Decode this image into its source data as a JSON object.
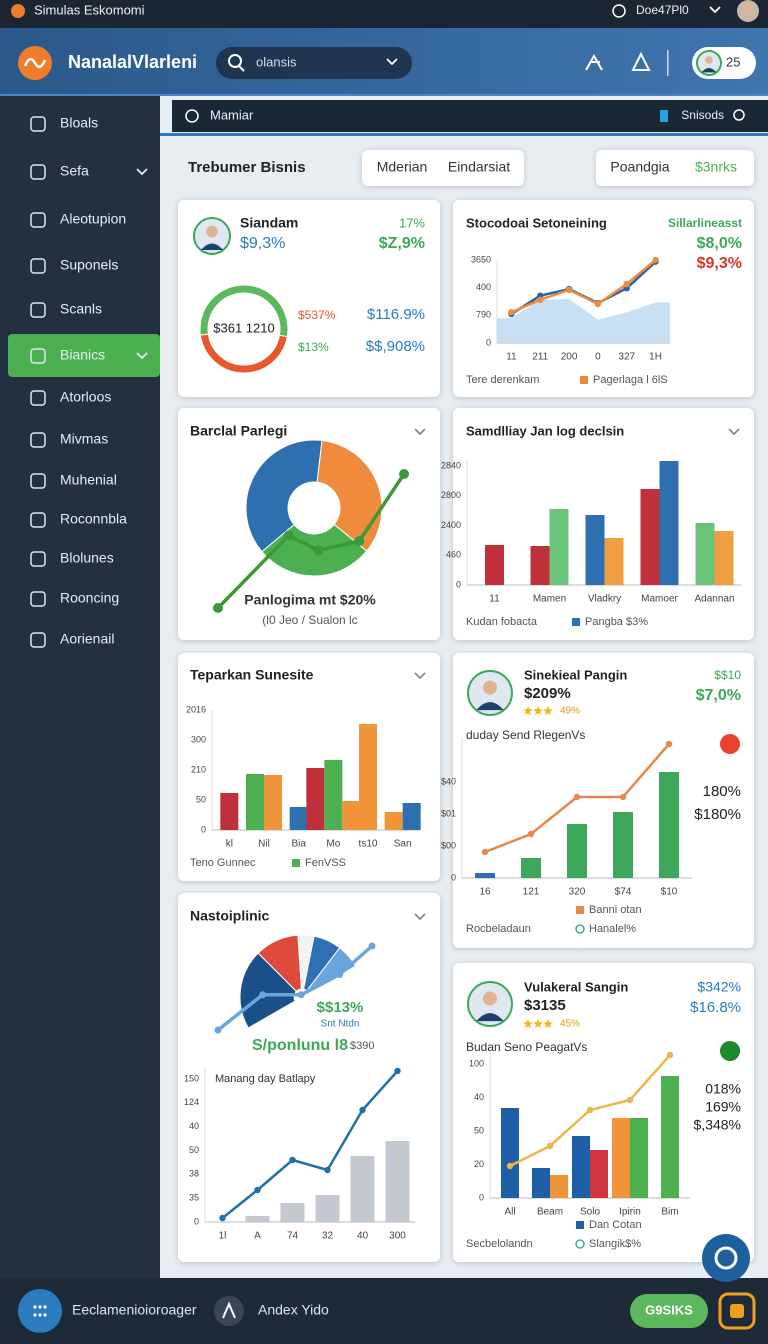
{
  "status_bar": {
    "app": "Simulas Eskomomi",
    "user": "Doe47Pl0"
  },
  "header": {
    "brand": "NanalalVlarleni",
    "search": "olansis",
    "badge": "25"
  },
  "sidebar": {
    "items": [
      "Bloals",
      "Sefa",
      "Aleotupion",
      "Suponels",
      "Scanls",
      "Bianics",
      "Atorloos",
      "Mivmas",
      "Muhenial",
      "Roconnbla",
      "Blolunes",
      "Rooncing",
      "Aorienail"
    ],
    "active": 5
  },
  "toolbar": {
    "left": "Mamiar",
    "right": "Snisods"
  },
  "page": {
    "title": "Trebumer Bisnis",
    "tabs": [
      "Mderian",
      "Eindarsiat"
    ],
    "filters": [
      "Poandgia",
      "$3nrks"
    ]
  },
  "bottom_bar": {
    "left": "Eeclamenioioroager",
    "middle": "Andex Yido",
    "button": "G9SIKS"
  },
  "chart_data": [
    {
      "type": "donut",
      "title": "Siandam",
      "subtitle": "$9,3%",
      "stats": [
        "17%",
        "$Z,9%"
      ],
      "center": "$361 1210",
      "values": [
        45,
        55
      ],
      "colors": [
        "#e8572e",
        "#5cb85c"
      ],
      "side_labels": [
        "$537%",
        "$13%"
      ],
      "notes": [
        "$116.9%",
        "$$,908%"
      ]
    },
    {
      "type": "line",
      "title": "Stocodoai Setoneining",
      "stats": [
        "Sillarlineasst",
        "$8,0%",
        "$9,3%"
      ],
      "categories": [
        "11",
        "211",
        "200",
        "0",
        "327",
        "1H"
      ],
      "y_labels": [
        "3650",
        "400",
        "790",
        "0"
      ],
      "ylim": [
        0,
        100
      ],
      "footer": "Tere derenkam",
      "series": [
        {
          "type": "area",
          "color": "#b9d8f0",
          "values": [
            30,
            52,
            53,
            28,
            37,
            49
          ]
        },
        {
          "type": "line",
          "color": "#2563a8",
          "values": [
            35,
            57,
            65,
            48,
            66,
            98
          ]
        },
        {
          "type": "line",
          "name": "Pagerlaga l 6lS",
          "color": "#f08a3c",
          "values": [
            37,
            52,
            64,
            47,
            71,
            100
          ]
        }
      ]
    },
    {
      "type": "donut_line",
      "title": "Barclal Parlegi",
      "values": [
        38,
        34,
        28
      ],
      "colors": [
        "#2e6fb0",
        "#f08a3c",
        "#4caf50"
      ],
      "line": {
        "color": "#3a9a3a",
        "x": [
          0,
          38,
          54,
          76,
          100
        ],
        "values": [
          0,
          54,
          43,
          50,
          100
        ]
      },
      "caption": "Panlogima mt $20%",
      "subcaption": "(l0 Jeo / Sualon lc"
    },
    {
      "type": "bar",
      "title": "Samdlliay Jan log declsin",
      "categories": [
        "11",
        "Mamen",
        "Vladkry",
        "Mamoer",
        "Adannan"
      ],
      "y_labels": [
        "2840",
        "2800",
        "2400",
        "460",
        "0"
      ],
      "ylim": [
        0,
        125
      ],
      "footer": "Kudan fobacta",
      "series": [
        {
          "color": "#c0303a",
          "values": [
            40,
            39,
            null,
            96,
            null
          ]
        },
        {
          "color": "#6cc47a",
          "values": [
            null,
            76,
            null,
            null,
            62
          ]
        },
        {
          "name": "Pangba $3%",
          "color": "#2e6fb0",
          "values": [
            null,
            null,
            70,
            124,
            null
          ]
        },
        {
          "color": "#f0a040",
          "values": [
            null,
            null,
            47,
            null,
            54
          ]
        }
      ]
    },
    {
      "type": "bar",
      "title": "Teparkan Sunesite",
      "categories": [
        "kl",
        "Nil",
        "Bia",
        "Mo",
        "ts10",
        "San"
      ],
      "y_labels": [
        "2016",
        "300",
        "210",
        "50",
        "0"
      ],
      "ylim": [
        0,
        120
      ],
      "footer": "Teno Gunnec",
      "series": [
        {
          "color": "#c0303a",
          "values": [
            37,
            null,
            null,
            62,
            null,
            null
          ]
        },
        {
          "name": "FenVSS",
          "color": "#4caf50",
          "values": [
            null,
            56,
            null,
            70,
            null,
            null
          ]
        },
        {
          "color": "#f0943a",
          "values": [
            null,
            55,
            null,
            29,
            106,
            18
          ]
        },
        {
          "color": "#2e6fb0",
          "values": [
            null,
            null,
            23,
            null,
            null,
            27
          ]
        }
      ]
    },
    {
      "type": "combo",
      "title": "Sinekieal Pangin",
      "subtitle": "$209%",
      "rating": "49%",
      "stats": [
        "$$10",
        "$7,0%"
      ],
      "caption": "duday Send RlegenVs",
      "side": [
        "180%",
        "$180%"
      ],
      "categories": [
        "16",
        "121",
        "320",
        "$74",
        "$10"
      ],
      "y_labels": [
        "$40",
        "$01",
        "$00",
        "0"
      ],
      "ylim": [
        0,
        140
      ],
      "footer": "Rocbeladaun",
      "legend_extra": "Hanalel%",
      "series": [
        {
          "color": "#2e6fb0",
          "values": [
            5,
            null,
            null,
            null,
            null
          ]
        },
        {
          "color": "#3da85a",
          "values": [
            null,
            20,
            54,
            66,
            106
          ]
        },
        {
          "type": "line",
          "name": "Banni otan",
          "color": "#e8874a",
          "values": [
            26,
            44,
            81,
            81,
            134
          ]
        }
      ]
    },
    {
      "type": "fan",
      "title": "Nastoiplinic",
      "values": [
        40,
        22,
        8,
        14,
        12
      ],
      "colors": [
        "#1b4f8a",
        "#e04a3a",
        "#f2f2f2",
        "#2f6fb5",
        "#6aa6dc"
      ],
      "line": {
        "color": "#6aa6dc",
        "x": [
          0,
          29,
          54,
          79,
          100
        ],
        "values": [
          0,
          42,
          42,
          66,
          100
        ]
      },
      "stats": [
        "$$13%",
        "Snt Ntdn",
        "S/ponlunu l8",
        "$390"
      ]
    },
    {
      "type": "combo",
      "title": "Manang day Batlapy",
      "categories": [
        "1l",
        "A",
        "74",
        "32",
        "40",
        "300"
      ],
      "y_labels": [
        "150",
        "124",
        "40",
        "50",
        "38",
        "35",
        "0"
      ],
      "ylim": [
        0,
        155
      ],
      "series": [
        {
          "color": "#c4c9cf",
          "values": [
            null,
            6,
            19,
            27,
            66,
            81
          ]
        },
        {
          "type": "line",
          "color": "#1f6fa8",
          "values": [
            4,
            32,
            62,
            52,
            112,
            151
          ]
        }
      ]
    },
    {
      "type": "combo",
      "title": "Vulakeral Sangin",
      "subtitle": "$3135",
      "rating": "45%",
      "stats": [
        "$342%",
        "$16.8%"
      ],
      "caption": "Budan Seno PeagatVs",
      "side": [
        "018%",
        "169%",
        "$,348%"
      ],
      "categories": [
        "All",
        "Beam",
        "Solo",
        "Ipirin",
        "Bim"
      ],
      "y_labels": [
        "100",
        "40",
        "50",
        "20",
        "0"
      ],
      "ylim": [
        0,
        150
      ],
      "footer": "Secbelolandn",
      "legend_extra": "Slangik$%",
      "series": [
        {
          "name": "Dan Cotan",
          "color": "#1f5fa8",
          "values": [
            90,
            30,
            62,
            null,
            null
          ]
        },
        {
          "color": "#f0943a",
          "values": [
            null,
            23,
            null,
            80,
            null
          ]
        },
        {
          "color": "#d0353f",
          "values": [
            null,
            null,
            48,
            null,
            null
          ]
        },
        {
          "color": "#4caf50",
          "values": [
            null,
            null,
            null,
            80,
            122
          ]
        },
        {
          "type": "line",
          "color": "#e8b84a",
          "values": [
            32,
            52,
            88,
            98,
            143
          ]
        }
      ]
    }
  ]
}
